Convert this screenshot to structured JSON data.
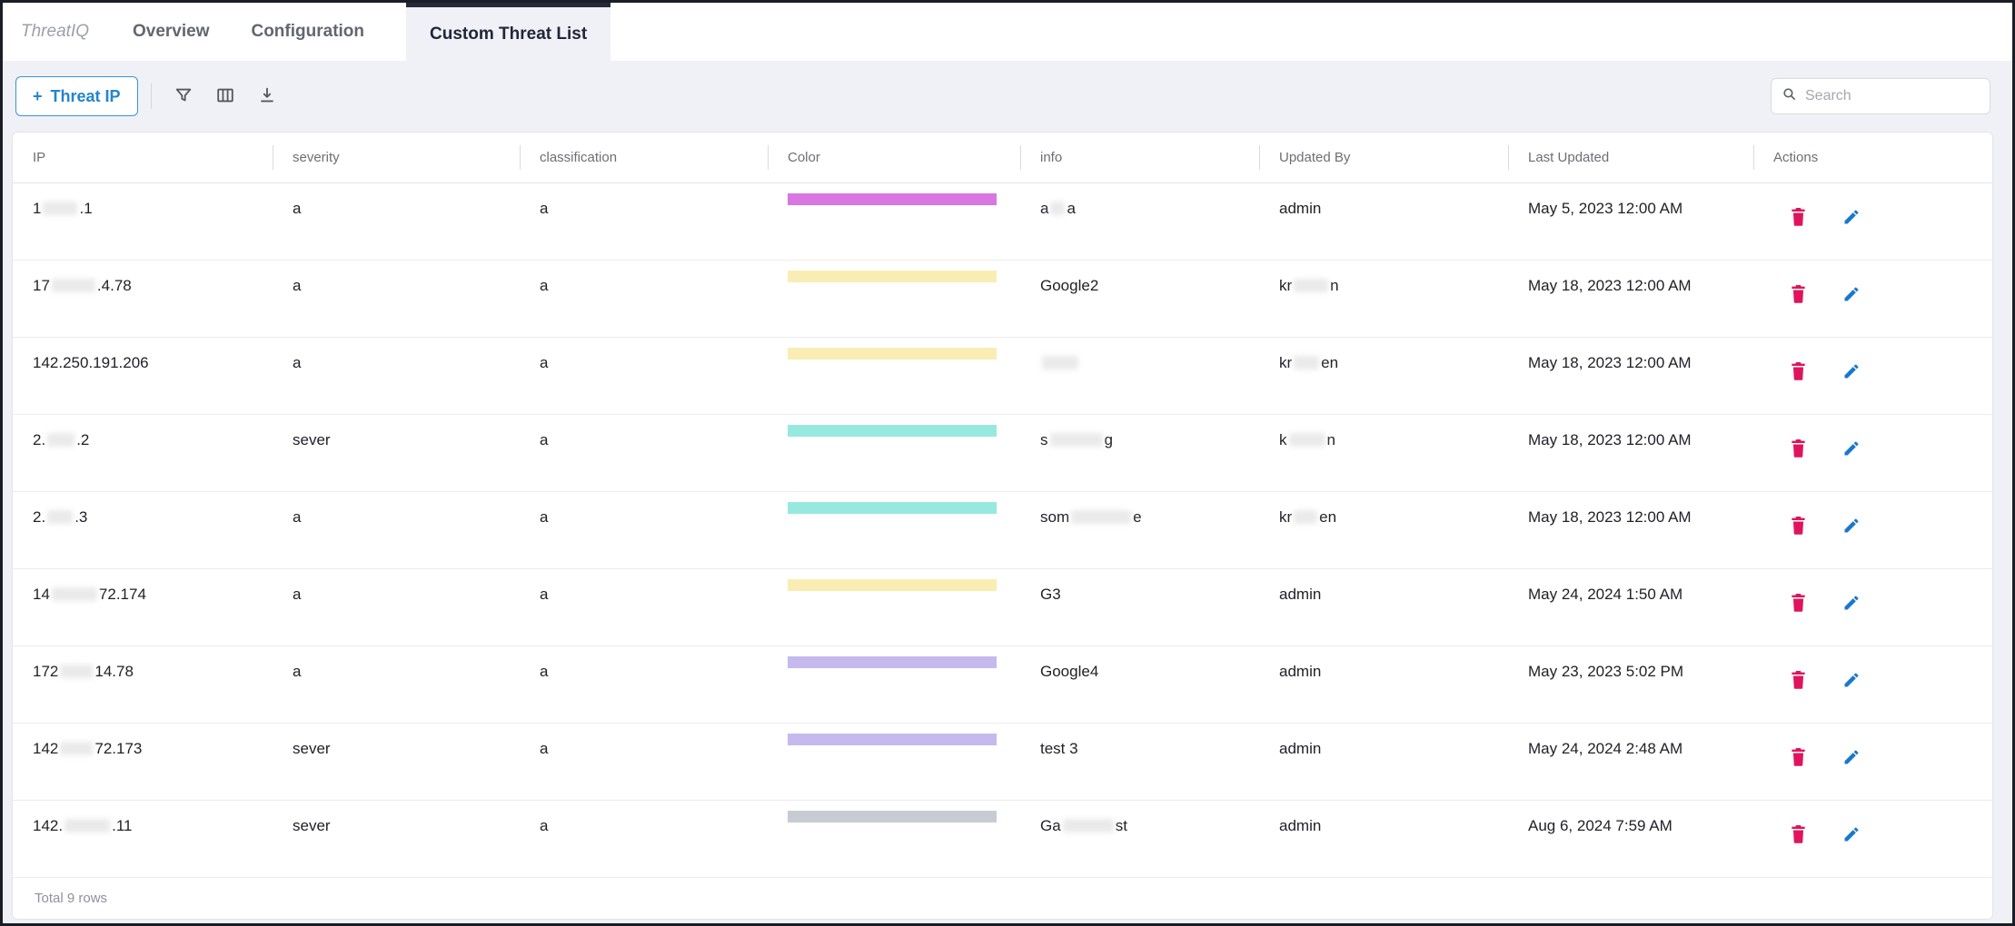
{
  "tabs": {
    "brand": "ThreatIQ",
    "items": [
      {
        "label": "Overview",
        "active": false
      },
      {
        "label": "Configuration",
        "active": false
      },
      {
        "label": "Custom Threat List",
        "active": true
      }
    ]
  },
  "toolbar": {
    "add_button_plus": "+",
    "add_button_label": "Threat IP",
    "icons": [
      "filter-icon",
      "columns-icon",
      "download-icon"
    ],
    "search_placeholder": "Search"
  },
  "colors": {
    "accent_blue": "#2384cf",
    "delete_red": "#e0145c",
    "edit_blue": "#1878cc",
    "active_tab_border": "#252838",
    "page_background": "#f0f1f6"
  },
  "table": {
    "columns": [
      {
        "key": "ip",
        "label": "IP"
      },
      {
        "key": "severity",
        "label": "severity"
      },
      {
        "key": "classification",
        "label": "classification"
      },
      {
        "key": "color",
        "label": "Color"
      },
      {
        "key": "info",
        "label": "info"
      },
      {
        "key": "updated_by",
        "label": "Updated By"
      },
      {
        "key": "last_updated",
        "label": "Last Updated"
      },
      {
        "key": "actions",
        "label": "Actions"
      }
    ],
    "rows": [
      {
        "ip": [
          {
            "t": "1"
          },
          {
            "r": 38
          },
          {
            "t": ".1"
          }
        ],
        "severity": "a",
        "classification": "a",
        "color": "#d877e2",
        "info": [
          {
            "t": "a"
          },
          {
            "r": 16
          },
          {
            "t": "a"
          }
        ],
        "updated_by": [
          {
            "t": "admin"
          }
        ],
        "last_updated": "May 5, 2023 12:00 AM"
      },
      {
        "ip": [
          {
            "t": "17"
          },
          {
            "r": 48
          },
          {
            "t": ".4.78"
          }
        ],
        "severity": "a",
        "classification": "a",
        "color": "#f9edb4",
        "info": [
          {
            "t": "Google2"
          }
        ],
        "updated_by": [
          {
            "t": "kr"
          },
          {
            "r": 38
          },
          {
            "t": "n"
          }
        ],
        "last_updated": "May 18, 2023 12:00 AM"
      },
      {
        "ip": [
          {
            "t": "142.250.191.206"
          }
        ],
        "severity": "a",
        "classification": "a",
        "color": "#f9edb4",
        "info": [
          {
            "r": 40
          }
        ],
        "updated_by": [
          {
            "t": "kr"
          },
          {
            "r": 28
          },
          {
            "t": "en"
          }
        ],
        "last_updated": "May 18, 2023 12:00 AM"
      },
      {
        "ip": [
          {
            "t": "2."
          },
          {
            "r": 30
          },
          {
            "t": ".2"
          }
        ],
        "severity": "sever",
        "classification": "a",
        "color": "#97e9e0",
        "info": [
          {
            "t": "s"
          },
          {
            "r": 58
          },
          {
            "t": "g"
          }
        ],
        "updated_by": [
          {
            "t": "k"
          },
          {
            "r": 40
          },
          {
            "t": "n"
          }
        ],
        "last_updated": "May 18, 2023 12:00 AM"
      },
      {
        "ip": [
          {
            "t": "2."
          },
          {
            "r": 28
          },
          {
            "t": ".3"
          }
        ],
        "severity": "a",
        "classification": "a",
        "color": "#97e9e0",
        "info": [
          {
            "t": "som"
          },
          {
            "r": 66
          },
          {
            "t": "e"
          }
        ],
        "updated_by": [
          {
            "t": "kr"
          },
          {
            "r": 26
          },
          {
            "t": "en"
          }
        ],
        "last_updated": "May 18, 2023 12:00 AM"
      },
      {
        "ip": [
          {
            "t": "14"
          },
          {
            "r": 50
          },
          {
            "t": "72.174"
          }
        ],
        "severity": "a",
        "classification": "a",
        "color": "#f9edb4",
        "info": [
          {
            "t": "G3"
          }
        ],
        "updated_by": [
          {
            "t": "admin"
          }
        ],
        "last_updated": "May 24, 2024 1:50 AM"
      },
      {
        "ip": [
          {
            "t": "172"
          },
          {
            "r": 36
          },
          {
            "t": "14.78"
          }
        ],
        "severity": "a",
        "classification": "a",
        "color": "#c6b9ee",
        "info": [
          {
            "t": "Google4"
          }
        ],
        "updated_by": [
          {
            "t": "admin"
          }
        ],
        "last_updated": "May 23, 2023 5:02 PM"
      },
      {
        "ip": [
          {
            "t": "142"
          },
          {
            "r": 36
          },
          {
            "t": "72.173"
          }
        ],
        "severity": "sever",
        "classification": "a",
        "color": "#c6b9ee",
        "info": [
          {
            "t": "test 3"
          }
        ],
        "updated_by": [
          {
            "t": "admin"
          }
        ],
        "last_updated": "May 24, 2024 2:48 AM"
      },
      {
        "ip": [
          {
            "t": "142."
          },
          {
            "r": 50
          },
          {
            "t": ".11"
          }
        ],
        "severity": "sever",
        "classification": "a",
        "color": "#c7ccd2",
        "info": [
          {
            "t": "Ga"
          },
          {
            "r": 56
          },
          {
            "t": "st"
          }
        ],
        "updated_by": [
          {
            "t": "admin"
          }
        ],
        "last_updated": "Aug 6, 2024 7:59 AM"
      }
    ],
    "footer": "Total 9 rows"
  }
}
